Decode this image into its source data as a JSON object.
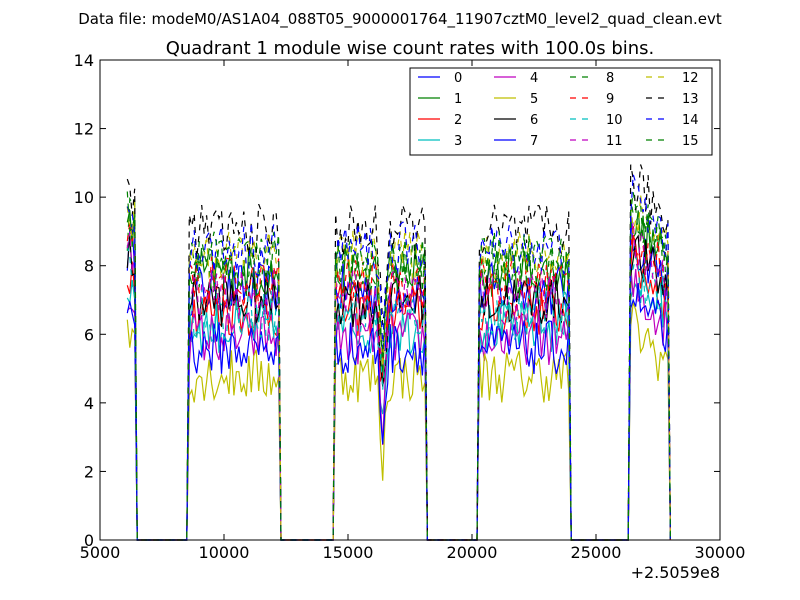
{
  "header": {
    "data_file": "Data file: modeM0/AS1A04_088T05_9000001764_11907cztM0_level2_quad_clean.evt"
  },
  "chart_data": {
    "type": "line",
    "title": "Quadrant 1 module wise count rates with 100.0s bins.",
    "xlabel": "",
    "ylabel": "",
    "x_offset_label": "+2.5059e8",
    "xlim": [
      5000,
      30000
    ],
    "ylim": [
      0,
      14
    ],
    "xticks": [
      5000,
      10000,
      15000,
      20000,
      25000,
      30000
    ],
    "yticks": [
      0,
      2,
      4,
      6,
      8,
      10,
      12,
      14
    ],
    "xtick_labels": [
      "5000",
      "10000",
      "15000",
      "20000",
      "25000",
      "30000"
    ],
    "ytick_labels": [
      "0",
      "2",
      "4",
      "6",
      "8",
      "10",
      "12",
      "14"
    ],
    "grid": false,
    "legend_position": "top-right",
    "legend_columns": 4,
    "bin_width": 100,
    "segments": [
      [
        6100,
        6400
      ],
      [
        8600,
        12200
      ],
      [
        14500,
        18100
      ],
      [
        20300,
        23900
      ],
      [
        26400,
        27900
      ]
    ],
    "series": [
      {
        "name": "0",
        "color": "#0000ff",
        "dash": "solid",
        "level": 7.3
      },
      {
        "name": "1",
        "color": "#008000",
        "dash": "solid",
        "level": 7.8
      },
      {
        "name": "2",
        "color": "#ff0000",
        "dash": "solid",
        "level": 6.7
      },
      {
        "name": "3",
        "color": "#00bfbf",
        "dash": "solid",
        "level": 6.2
      },
      {
        "name": "4",
        "color": "#bf00bf",
        "dash": "solid",
        "level": 5.9
      },
      {
        "name": "5",
        "color": "#bfbf00",
        "dash": "solid",
        "level": 4.8
      },
      {
        "name": "6",
        "color": "#000000",
        "dash": "solid",
        "level": 7.0
      },
      {
        "name": "7",
        "color": "#0000ff",
        "dash": "solid",
        "level": 5.6
      },
      {
        "name": "8",
        "color": "#008000",
        "dash": "dashed",
        "level": 8.0
      },
      {
        "name": "9",
        "color": "#ff0000",
        "dash": "dashed",
        "level": 7.5
      },
      {
        "name": "10",
        "color": "#00bfbf",
        "dash": "dashed",
        "level": 6.6
      },
      {
        "name": "11",
        "color": "#bf00bf",
        "dash": "dashed",
        "level": 7.1
      },
      {
        "name": "12",
        "color": "#bfbf00",
        "dash": "dashed",
        "level": 8.3
      },
      {
        "name": "13",
        "color": "#000000",
        "dash": "dashed",
        "level": 9.0
      },
      {
        "name": "14",
        "color": "#0000ff",
        "dash": "dashed",
        "level": 8.5
      },
      {
        "name": "15",
        "color": "#008000",
        "dash": "dashed",
        "level": 8.2
      }
    ]
  }
}
